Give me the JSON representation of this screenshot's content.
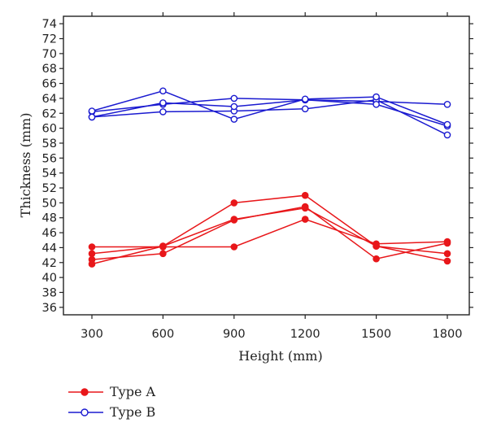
{
  "chart_data": {
    "type": "line",
    "xlabel": "Height (mm)",
    "ylabel": "Thickness (mm)",
    "x": [
      300,
      600,
      900,
      1200,
      1500,
      1800
    ],
    "xticks": [
      "300",
      "600",
      "900",
      "1200",
      "1500",
      "1800"
    ],
    "yticks": [
      "36",
      "38",
      "40",
      "42",
      "44",
      "46",
      "48",
      "50",
      "52",
      "54",
      "56",
      "58",
      "60",
      "62",
      "64",
      "66",
      "68",
      "70",
      "72",
      "74"
    ],
    "ylim": [
      35,
      75
    ],
    "grid": false,
    "legend_position": "bottom-left",
    "series": [
      {
        "name": "Type A",
        "group": "A",
        "values": [
          44.1,
          44.1,
          44.1,
          47.8,
          44.5,
          44.8
        ]
      },
      {
        "name": "Type A",
        "group": "A",
        "values": [
          43.2,
          44.2,
          50.0,
          51.0,
          44.2,
          43.2
        ]
      },
      {
        "name": "Type A",
        "group": "A",
        "values": [
          42.4,
          43.2,
          47.7,
          49.5,
          42.5,
          44.6
        ]
      },
      {
        "name": "Type A",
        "group": "A",
        "values": [
          41.8,
          44.2,
          47.8,
          49.3,
          44.2,
          42.2
        ]
      },
      {
        "name": "Type B",
        "group": "B",
        "values": [
          62.2,
          63.2,
          64.0,
          63.8,
          63.6,
          63.2
        ]
      },
      {
        "name": "Type B",
        "group": "B",
        "values": [
          61.5,
          62.2,
          62.3,
          62.6,
          63.8,
          59.1
        ]
      },
      {
        "name": "Type B",
        "group": "B",
        "values": [
          61.5,
          63.4,
          62.9,
          63.8,
          63.2,
          60.3
        ]
      },
      {
        "name": "Type B",
        "group": "B",
        "values": [
          62.3,
          65.0,
          61.2,
          63.9,
          64.2,
          60.5
        ]
      }
    ],
    "legend": [
      {
        "label": "Type A",
        "color": "#e8171a",
        "marker": "filled-circle"
      },
      {
        "label": "Type B",
        "color": "#1a1ad0",
        "marker": "open-circle"
      }
    ],
    "colors": {
      "A": "#e8171a",
      "B": "#1a1ad0"
    }
  }
}
